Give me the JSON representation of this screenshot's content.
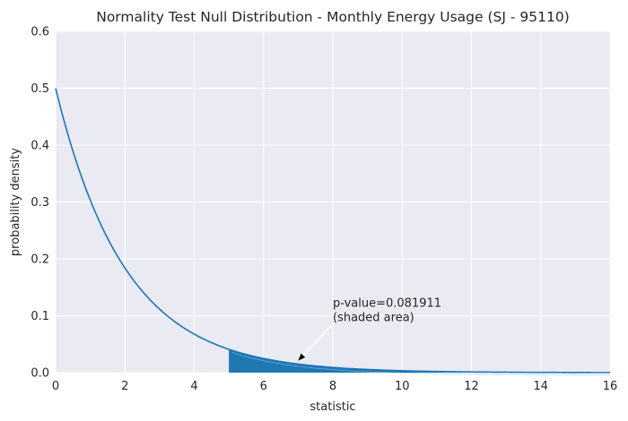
{
  "chart_data": {
    "type": "line",
    "title": "Normality Test Null Distribution - Monthly Energy Usage (SJ - 95110)",
    "xlabel": "statistic",
    "ylabel": "probability density",
    "xlim": [
      0,
      16
    ],
    "ylim": [
      0,
      0.6
    ],
    "xticks": [
      0,
      2,
      4,
      6,
      8,
      10,
      12,
      14,
      16
    ],
    "yticks": [
      0.0,
      0.1,
      0.2,
      0.3,
      0.4,
      0.5,
      0.6
    ],
    "xtick_labels": [
      "0",
      "2",
      "4",
      "6",
      "8",
      "10",
      "12",
      "14",
      "16"
    ],
    "ytick_labels": [
      "0.0",
      "0.1",
      "0.2",
      "0.3",
      "0.4",
      "0.5",
      "0.6"
    ],
    "grid": true,
    "series": [
      {
        "color": "#1f77b4",
        "x": [
          0,
          0.5,
          1,
          1.5,
          2,
          2.5,
          3,
          3.5,
          4,
          4.5,
          5,
          5.5,
          6,
          6.5,
          7,
          7.5,
          8,
          8.5,
          9,
          9.5,
          10,
          10.5,
          11,
          11.5,
          12,
          12.5,
          13,
          13.5,
          14,
          14.5,
          15,
          15.5,
          16
        ],
        "y": [
          0.5,
          0.3894,
          0.3033,
          0.2362,
          0.1839,
          0.1433,
          0.1116,
          0.0869,
          0.0677,
          0.0527,
          0.041,
          0.032,
          0.0249,
          0.0194,
          0.0151,
          0.0118,
          0.0092,
          0.0071,
          0.0056,
          0.0043,
          0.0034,
          0.0026,
          0.002,
          0.0016,
          0.0012,
          0.001,
          0.0008,
          0.0006,
          0.0005,
          0.0004,
          0.0003,
          0.0002,
          0.0002
        ]
      }
    ],
    "shaded_region": {
      "x_start": 5.0,
      "x_end": 16,
      "color": "#1f77b4"
    },
    "annotation": {
      "text_lines": [
        "p-value=0.081911",
        "(shaded area)"
      ],
      "text_x": 8.0,
      "text_y": 0.1,
      "arrow_x": 7.0,
      "arrow_y": 0.021
    },
    "colors": {
      "axes_bg": "#eaeaf2",
      "grid": "#ffffff",
      "line": "#1f77b4",
      "text": "#262626"
    }
  }
}
